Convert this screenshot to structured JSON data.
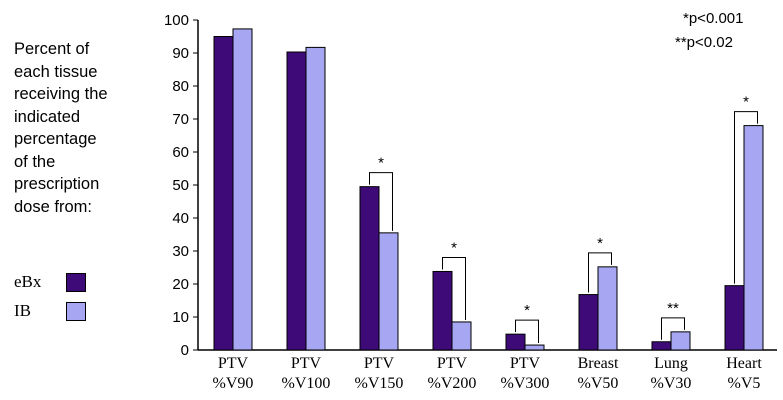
{
  "side_text": [
    "Percent of",
    "each tissue",
    "receiving the",
    "indicated",
    "percentage",
    "of the",
    "prescription",
    "dose from:"
  ],
  "notes": {
    "p1": "*p<0.001",
    "p2": "**p<0.02"
  },
  "colors": {
    "eBx": "#3d0a78",
    "IB": "#a6a6f2"
  },
  "chart_data": {
    "type": "bar",
    "ylim": [
      0,
      100
    ],
    "yticks": [
      0,
      10,
      20,
      30,
      40,
      50,
      60,
      70,
      80,
      90,
      100
    ],
    "categories": [
      [
        "PTV",
        "%V90"
      ],
      [
        "PTV",
        "%V100"
      ],
      [
        "PTV",
        "%V150"
      ],
      [
        "PTV",
        "%V200"
      ],
      [
        "PTV",
        "%V300"
      ],
      [
        "Breast",
        "%V50"
      ],
      [
        "Lung",
        "%V30"
      ],
      [
        "Heart",
        "%V5"
      ]
    ],
    "series": [
      {
        "name": "eBx",
        "values": [
          95,
          90.3,
          49.5,
          23.8,
          4.8,
          16.8,
          2.5,
          19.5
        ]
      },
      {
        "name": "IB",
        "values": [
          97.3,
          91.7,
          35.5,
          8.5,
          1.5,
          25.2,
          5.5,
          68
        ]
      }
    ],
    "significance": [
      "",
      "",
      "*",
      "*",
      "*",
      "*",
      "**",
      "*"
    ]
  }
}
